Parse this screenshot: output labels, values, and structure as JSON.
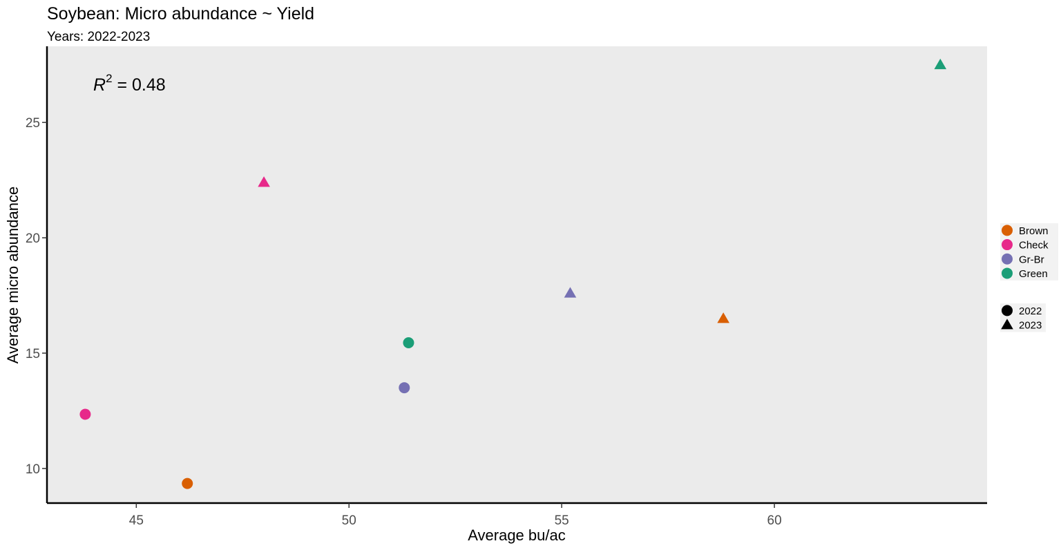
{
  "chart_data": {
    "type": "scatter",
    "title": "Soybean: Micro abundance ~ Yield",
    "subtitle": "Years: 2022-2023",
    "xlabel": "Average bu/ac",
    "ylabel": "Average micro abundance",
    "xlim": [
      42.9,
      65.0
    ],
    "ylim": [
      8.5,
      28.3
    ],
    "x_ticks": [
      45,
      50,
      55,
      60
    ],
    "y_ticks": [
      10,
      15,
      20,
      25
    ],
    "grid": false,
    "annotation": {
      "prefix": "R",
      "superscript": "2",
      "value": " = 0.48"
    },
    "legend_position": "right",
    "color_legend": [
      {
        "label": "Brown",
        "color": "#D95F02"
      },
      {
        "label": "Check",
        "color": "#E7298A"
      },
      {
        "label": "Gr-Br",
        "color": "#7570B3"
      },
      {
        "label": "Green",
        "color": "#1B9E77"
      }
    ],
    "shape_legend": [
      {
        "label": "2022",
        "shape": "circle"
      },
      {
        "label": "2023",
        "shape": "triangle"
      }
    ],
    "points": [
      {
        "group": "Check",
        "year": "2022",
        "x": 43.8,
        "y": 12.35
      },
      {
        "group": "Brown",
        "year": "2022",
        "x": 46.2,
        "y": 9.35
      },
      {
        "group": "Gr-Br",
        "year": "2022",
        "x": 51.3,
        "y": 13.5
      },
      {
        "group": "Green",
        "year": "2022",
        "x": 51.4,
        "y": 15.45
      },
      {
        "group": "Check",
        "year": "2023",
        "x": 48.0,
        "y": 22.4
      },
      {
        "group": "Gr-Br",
        "year": "2023",
        "x": 55.2,
        "y": 17.6
      },
      {
        "group": "Brown",
        "year": "2023",
        "x": 58.8,
        "y": 16.5
      },
      {
        "group": "Green",
        "year": "2023",
        "x": 63.9,
        "y": 27.5
      }
    ]
  }
}
